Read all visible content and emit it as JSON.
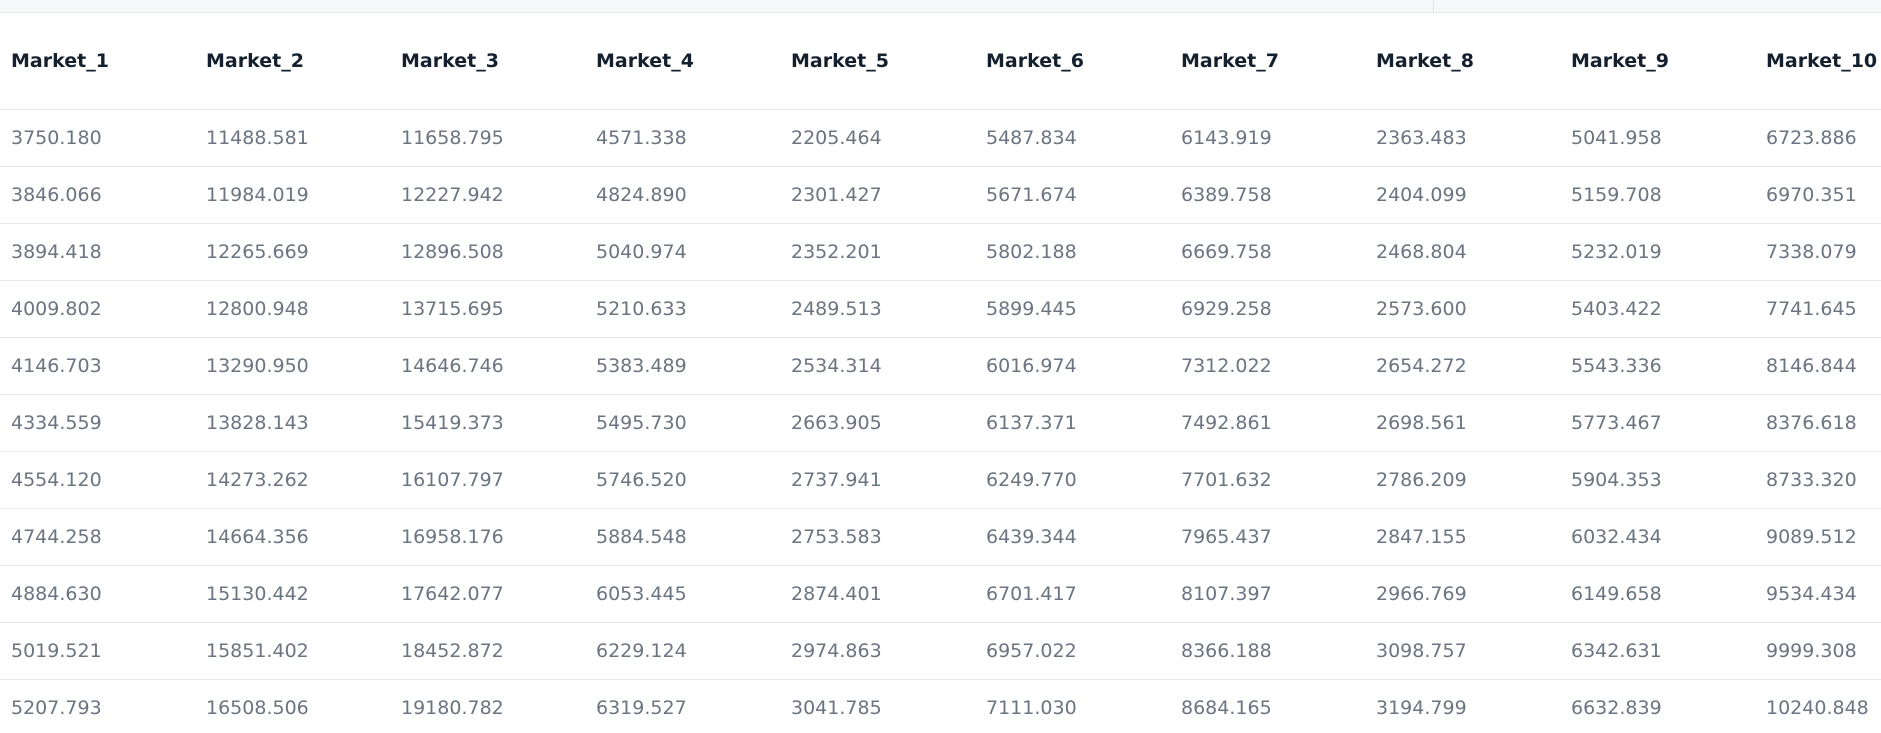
{
  "table": {
    "headers": [
      "Market_1",
      "Market_2",
      "Market_3",
      "Market_4",
      "Market_5",
      "Market_6",
      "Market_7",
      "Market_8",
      "Market_9",
      "Market_10"
    ],
    "rows": [
      [
        "3750.180",
        "11488.581",
        "11658.795",
        "4571.338",
        "2205.464",
        "5487.834",
        "6143.919",
        "2363.483",
        "5041.958",
        "6723.886"
      ],
      [
        "3846.066",
        "11984.019",
        "12227.942",
        "4824.890",
        "2301.427",
        "5671.674",
        "6389.758",
        "2404.099",
        "5159.708",
        "6970.351"
      ],
      [
        "3894.418",
        "12265.669",
        "12896.508",
        "5040.974",
        "2352.201",
        "5802.188",
        "6669.758",
        "2468.804",
        "5232.019",
        "7338.079"
      ],
      [
        "4009.802",
        "12800.948",
        "13715.695",
        "5210.633",
        "2489.513",
        "5899.445",
        "6929.258",
        "2573.600",
        "5403.422",
        "7741.645"
      ],
      [
        "4146.703",
        "13290.950",
        "14646.746",
        "5383.489",
        "2534.314",
        "6016.974",
        "7312.022",
        "2654.272",
        "5543.336",
        "8146.844"
      ],
      [
        "4334.559",
        "13828.143",
        "15419.373",
        "5495.730",
        "2663.905",
        "6137.371",
        "7492.861",
        "2698.561",
        "5773.467",
        "8376.618"
      ],
      [
        "4554.120",
        "14273.262",
        "16107.797",
        "5746.520",
        "2737.941",
        "6249.770",
        "7701.632",
        "2786.209",
        "5904.353",
        "8733.320"
      ],
      [
        "4744.258",
        "14664.356",
        "16958.176",
        "5884.548",
        "2753.583",
        "6439.344",
        "7965.437",
        "2847.155",
        "6032.434",
        "9089.512"
      ],
      [
        "4884.630",
        "15130.442",
        "17642.077",
        "6053.445",
        "2874.401",
        "6701.417",
        "8107.397",
        "2966.769",
        "6149.658",
        "9534.434"
      ],
      [
        "5019.521",
        "15851.402",
        "18452.872",
        "6229.124",
        "2974.863",
        "6957.022",
        "8366.188",
        "3098.757",
        "6342.631",
        "9999.308"
      ],
      [
        "5207.793",
        "16508.506",
        "19180.782",
        "6319.527",
        "3041.785",
        "7111.030",
        "8684.165",
        "3194.799",
        "6632.839",
        "10240.848"
      ]
    ]
  }
}
